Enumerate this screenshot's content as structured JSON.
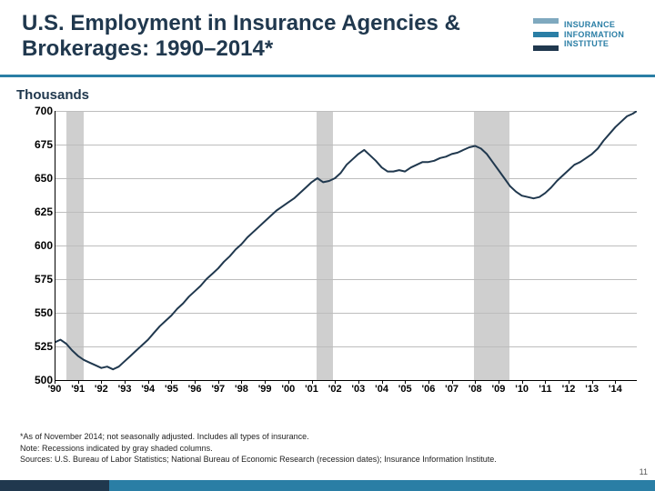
{
  "title": "U.S. Employment in Insurance Agencies & Brokerages: 1990–2014*",
  "subtitle": "Thousands",
  "logo": {
    "text_lines": [
      "INSURANCE",
      "INFORMATION",
      "INSTITUTE"
    ],
    "bar_colors": [
      "#7fa9bf",
      "#2a7ea5",
      "#20384e"
    ],
    "text_color": "#2a7ea5"
  },
  "footnotes": {
    "l1": "*As of November 2014; not seasonally adjusted. Includes all types of insurance.",
    "l2": "Note: Recessions indicated by gray shaded columns.",
    "l3": "Sources: U.S. Bureau of Labor Statistics;  National Bureau of Economic Research (recession dates); Insurance Information Institute."
  },
  "page_number": "11",
  "colors": {
    "title": "#20384e",
    "accent_rule": "#2a7ea5",
    "footer_primary": "#2a7ea5",
    "footer_dark": "#20384e",
    "grid": "#bdbdbd",
    "recession": "#c7c7c7",
    "line": "#20384e",
    "background": "#ffffff"
  },
  "chart": {
    "type": "line",
    "ylabel": "Thousands",
    "ylim": [
      500,
      700
    ],
    "ytick_step": 25,
    "yticks": [
      500,
      525,
      550,
      575,
      600,
      625,
      650,
      675,
      700
    ],
    "x_start_year": 1990,
    "x_end_year": 2014.92,
    "xticks": [
      "'90",
      "'91",
      "'92",
      "'93",
      "'94",
      "'95",
      "'96",
      "'97",
      "'98",
      "'99",
      "'00",
      "'01",
      "'02",
      "'03",
      "'04",
      "'05",
      "'06",
      "'07",
      "'08",
      "'09",
      "'10",
      "'11",
      "'12",
      "'13",
      "'14"
    ],
    "recessions": [
      {
        "start": 1990.5,
        "end": 1991.25
      },
      {
        "start": 2001.2,
        "end": 2001.9
      },
      {
        "start": 2007.95,
        "end": 2009.45
      }
    ],
    "line_width": 2,
    "series": [
      {
        "x": 1990.0,
        "y": 528
      },
      {
        "x": 1990.25,
        "y": 530
      },
      {
        "x": 1990.5,
        "y": 527
      },
      {
        "x": 1990.75,
        "y": 522
      },
      {
        "x": 1991.0,
        "y": 518
      },
      {
        "x": 1991.25,
        "y": 515
      },
      {
        "x": 1991.5,
        "y": 513
      },
      {
        "x": 1991.75,
        "y": 511
      },
      {
        "x": 1992.0,
        "y": 509
      },
      {
        "x": 1992.25,
        "y": 510
      },
      {
        "x": 1992.5,
        "y": 508
      },
      {
        "x": 1992.75,
        "y": 510
      },
      {
        "x": 1993.0,
        "y": 514
      },
      {
        "x": 1993.25,
        "y": 518
      },
      {
        "x": 1993.5,
        "y": 522
      },
      {
        "x": 1993.75,
        "y": 526
      },
      {
        "x": 1994.0,
        "y": 530
      },
      {
        "x": 1994.25,
        "y": 535
      },
      {
        "x": 1994.5,
        "y": 540
      },
      {
        "x": 1994.75,
        "y": 544
      },
      {
        "x": 1995.0,
        "y": 548
      },
      {
        "x": 1995.25,
        "y": 553
      },
      {
        "x": 1995.5,
        "y": 557
      },
      {
        "x": 1995.75,
        "y": 562
      },
      {
        "x": 1996.0,
        "y": 566
      },
      {
        "x": 1996.25,
        "y": 570
      },
      {
        "x": 1996.5,
        "y": 575
      },
      {
        "x": 1996.75,
        "y": 579
      },
      {
        "x": 1997.0,
        "y": 583
      },
      {
        "x": 1997.25,
        "y": 588
      },
      {
        "x": 1997.5,
        "y": 592
      },
      {
        "x": 1997.75,
        "y": 597
      },
      {
        "x": 1998.0,
        "y": 601
      },
      {
        "x": 1998.25,
        "y": 606
      },
      {
        "x": 1998.5,
        "y": 610
      },
      {
        "x": 1998.75,
        "y": 614
      },
      {
        "x": 1999.0,
        "y": 618
      },
      {
        "x": 1999.25,
        "y": 622
      },
      {
        "x": 1999.5,
        "y": 626
      },
      {
        "x": 1999.75,
        "y": 629
      },
      {
        "x": 2000.0,
        "y": 632
      },
      {
        "x": 2000.25,
        "y": 635
      },
      {
        "x": 2000.5,
        "y": 639
      },
      {
        "x": 2000.75,
        "y": 643
      },
      {
        "x": 2001.0,
        "y": 647
      },
      {
        "x": 2001.25,
        "y": 650
      },
      {
        "x": 2001.5,
        "y": 647
      },
      {
        "x": 2001.75,
        "y": 648
      },
      {
        "x": 2002.0,
        "y": 650
      },
      {
        "x": 2002.25,
        "y": 654
      },
      {
        "x": 2002.5,
        "y": 660
      },
      {
        "x": 2002.75,
        "y": 664
      },
      {
        "x": 2003.0,
        "y": 668
      },
      {
        "x": 2003.25,
        "y": 671
      },
      {
        "x": 2003.5,
        "y": 667
      },
      {
        "x": 2003.75,
        "y": 663
      },
      {
        "x": 2004.0,
        "y": 658
      },
      {
        "x": 2004.25,
        "y": 655
      },
      {
        "x": 2004.5,
        "y": 655
      },
      {
        "x": 2004.75,
        "y": 656
      },
      {
        "x": 2005.0,
        "y": 655
      },
      {
        "x": 2005.25,
        "y": 658
      },
      {
        "x": 2005.5,
        "y": 660
      },
      {
        "x": 2005.75,
        "y": 662
      },
      {
        "x": 2006.0,
        "y": 662
      },
      {
        "x": 2006.25,
        "y": 663
      },
      {
        "x": 2006.5,
        "y": 665
      },
      {
        "x": 2006.75,
        "y": 666
      },
      {
        "x": 2007.0,
        "y": 668
      },
      {
        "x": 2007.25,
        "y": 669
      },
      {
        "x": 2007.5,
        "y": 671
      },
      {
        "x": 2007.75,
        "y": 673
      },
      {
        "x": 2008.0,
        "y": 674
      },
      {
        "x": 2008.25,
        "y": 672
      },
      {
        "x": 2008.5,
        "y": 668
      },
      {
        "x": 2008.75,
        "y": 662
      },
      {
        "x": 2009.0,
        "y": 656
      },
      {
        "x": 2009.25,
        "y": 650
      },
      {
        "x": 2009.5,
        "y": 644
      },
      {
        "x": 2009.75,
        "y": 640
      },
      {
        "x": 2010.0,
        "y": 637
      },
      {
        "x": 2010.25,
        "y": 636
      },
      {
        "x": 2010.5,
        "y": 635
      },
      {
        "x": 2010.75,
        "y": 636
      },
      {
        "x": 2011.0,
        "y": 639
      },
      {
        "x": 2011.25,
        "y": 643
      },
      {
        "x": 2011.5,
        "y": 648
      },
      {
        "x": 2011.75,
        "y": 652
      },
      {
        "x": 2012.0,
        "y": 656
      },
      {
        "x": 2012.25,
        "y": 660
      },
      {
        "x": 2012.5,
        "y": 662
      },
      {
        "x": 2012.75,
        "y": 665
      },
      {
        "x": 2013.0,
        "y": 668
      },
      {
        "x": 2013.25,
        "y": 672
      },
      {
        "x": 2013.5,
        "y": 678
      },
      {
        "x": 2013.75,
        "y": 683
      },
      {
        "x": 2014.0,
        "y": 688
      },
      {
        "x": 2014.25,
        "y": 692
      },
      {
        "x": 2014.5,
        "y": 696
      },
      {
        "x": 2014.75,
        "y": 698
      },
      {
        "x": 2014.92,
        "y": 700
      }
    ]
  }
}
